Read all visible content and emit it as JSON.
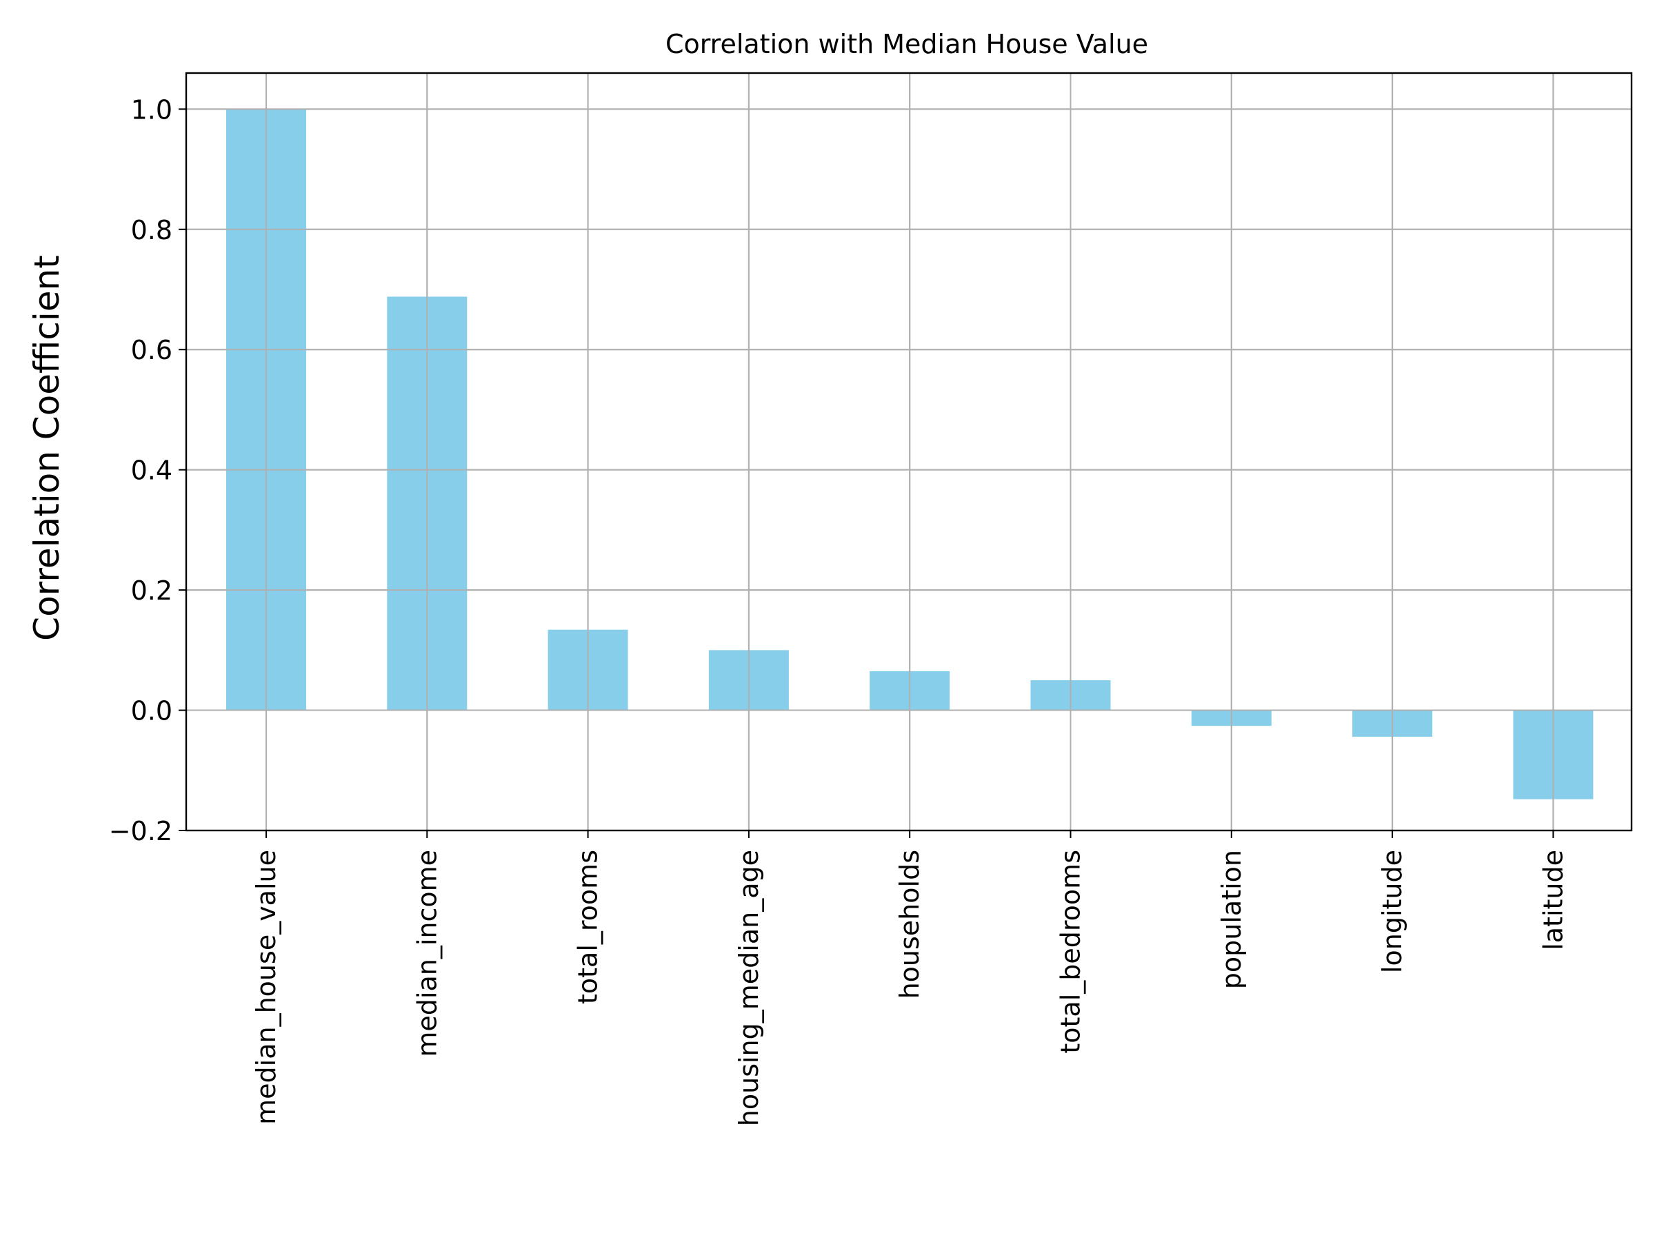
{
  "chart_data": {
    "type": "bar",
    "title": "Correlation with Median House Value",
    "xlabel": "",
    "ylabel": "Correlation Coefficient",
    "categories": [
      "median_house_value",
      "median_income",
      "total_rooms",
      "housing_median_age",
      "households",
      "total_bedrooms",
      "population",
      "longitude",
      "latitude"
    ],
    "values": [
      1.0,
      0.688,
      0.134,
      0.1,
      0.065,
      0.05,
      -0.026,
      -0.044,
      -0.148
    ],
    "ylim": [
      -0.2,
      1.06
    ],
    "yticks": [
      -0.2,
      0.0,
      0.2,
      0.4,
      0.6,
      0.8,
      1.0
    ],
    "ytick_labels": [
      "−0.2",
      "0.0",
      "0.2",
      "0.4",
      "0.6",
      "0.8",
      "1.0"
    ],
    "grid": true,
    "legend": "none",
    "bar_color": "#87ceeb",
    "grid_color": "#b0b0b0"
  }
}
